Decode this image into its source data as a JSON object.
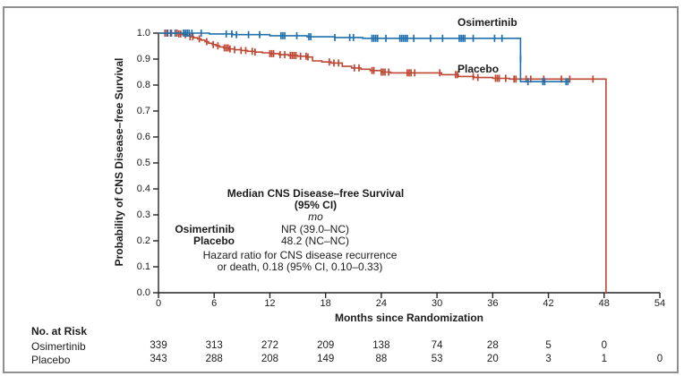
{
  "chart_data": {
    "type": "line",
    "subtype": "kaplan-meier-step",
    "xlabel": "Months since Randomization",
    "ylabel": "Probability of CNS Disease–free Survival",
    "xlim": [
      0,
      54
    ],
    "ylim": [
      0.0,
      1.0
    ],
    "xticks": [
      0,
      6,
      12,
      18,
      24,
      30,
      36,
      42,
      48,
      54
    ],
    "yticks": [
      "0.0",
      "0.1",
      "0.2",
      "0.3",
      "0.4",
      "0.5",
      "0.6",
      "0.7",
      "0.8",
      "0.9",
      "1.0"
    ],
    "grid": false,
    "series": [
      {
        "name": "Placebo",
        "color": "#bd4733",
        "steps": [
          [
            2.2,
            0.997
          ],
          [
            2.6,
            0.994
          ],
          [
            3.0,
            0.99
          ],
          [
            3.4,
            0.986
          ],
          [
            3.8,
            0.982
          ],
          [
            4.2,
            0.978
          ],
          [
            4.6,
            0.973
          ],
          [
            5.0,
            0.967
          ],
          [
            5.4,
            0.961
          ],
          [
            5.8,
            0.956
          ],
          [
            6.2,
            0.951
          ],
          [
            6.6,
            0.947
          ],
          [
            7.0,
            0.943
          ],
          [
            7.6,
            0.939
          ],
          [
            8.2,
            0.936
          ],
          [
            8.9,
            0.933
          ],
          [
            9.6,
            0.93
          ],
          [
            10.4,
            0.927
          ],
          [
            11.2,
            0.924
          ],
          [
            12.0,
            0.921
          ],
          [
            13.0,
            0.917
          ],
          [
            14.0,
            0.914
          ],
          [
            15.0,
            0.911
          ],
          [
            16.0,
            0.908
          ],
          [
            16.6,
            0.893
          ],
          [
            17.6,
            0.889
          ],
          [
            18.6,
            0.885
          ],
          [
            19.8,
            0.872
          ],
          [
            20.8,
            0.866
          ],
          [
            21.8,
            0.861
          ],
          [
            22.8,
            0.856
          ],
          [
            24.0,
            0.85
          ],
          [
            25.0,
            0.847
          ],
          [
            30.5,
            0.84
          ],
          [
            32.3,
            0.833
          ],
          [
            34.0,
            0.829
          ],
          [
            36.0,
            0.826
          ],
          [
            37.8,
            0.823
          ]
        ],
        "end_month": 48.2,
        "final_drop_to": 0.0,
        "censors": [
          0.7,
          1.0,
          1.4,
          2.0,
          2.2,
          2.4,
          2.9,
          3.4,
          3.7,
          4.4,
          5.2,
          5.9,
          6.4,
          7.1,
          7.3,
          7.5,
          7.7,
          8.2,
          8.9,
          9.4,
          10.1,
          10.4,
          12.0,
          12.2,
          12.4,
          13.1,
          13.6,
          14.2,
          14.4,
          14.6,
          14.8,
          15.3,
          15.9,
          16.1,
          18.4,
          18.9,
          19.4,
          21.1,
          21.6,
          23.0,
          23.2,
          24.0,
          24.2,
          24.4,
          24.8,
          26.8,
          27.0,
          27.2,
          27.6,
          30.3,
          32.0,
          32.2,
          33.9,
          34.4,
          36.3,
          36.5,
          36.7,
          37.4,
          38.3,
          38.5,
          39.6,
          40.1,
          41.5,
          43.4,
          44.3,
          46.8
        ]
      },
      {
        "name": "Osimertinib",
        "color": "#2170ad",
        "steps": [
          [
            5.5,
            0.997
          ],
          [
            8.0,
            0.994
          ],
          [
            12.0,
            0.99
          ],
          [
            16.0,
            0.986
          ],
          [
            19.0,
            0.983
          ],
          [
            22.0,
            0.98
          ],
          [
            39.0,
            0.813
          ]
        ],
        "end_month": 44.3,
        "final_drop_to": null,
        "censors": [
          0.9,
          1.3,
          1.8,
          2.7,
          2.9,
          3.1,
          3.3,
          3.6,
          4.6,
          7.3,
          7.9,
          8.4,
          9.7,
          10.9,
          13.2,
          13.4,
          13.6,
          14.9,
          16.2,
          16.4,
          19.0,
          20.6,
          21.0,
          23.0,
          23.2,
          23.4,
          23.6,
          24.5,
          26.0,
          26.2,
          26.4,
          26.6,
          26.8,
          27.5,
          29.3,
          30.6,
          32.4,
          32.6,
          32.8,
          33.0,
          33.9,
          36.2,
          37.0,
          [
            39.0,
            0.9
          ],
          39.8,
          41.4,
          41.6,
          43.9,
          44.1
        ]
      }
    ],
    "curve_labels": {
      "osimertinib": "Osimertinib",
      "placebo": "Placebo"
    },
    "annotation": {
      "title_line1": "Median CNS Disease–free Survival",
      "title_line2": "(95% CI)",
      "unit": "mo",
      "rows": [
        {
          "label": "Osimertinib",
          "value": "NR (39.0–NC)"
        },
        {
          "label": "Placebo",
          "value": "48.2 (NC–NC)"
        }
      ],
      "hazard_line1": "Hazard ratio for CNS disease recurrence",
      "hazard_line2": "or death, 0.18 (95% CI, 0.10–0.33)"
    },
    "risk_table": {
      "title": "No. at Risk",
      "rows": [
        {
          "label": "Osimertinib",
          "values": [
            339,
            313,
            272,
            209,
            138,
            74,
            28,
            5,
            0
          ]
        },
        {
          "label": "Placebo",
          "values": [
            343,
            288,
            208,
            149,
            88,
            53,
            20,
            3,
            1,
            0
          ]
        }
      ]
    }
  }
}
